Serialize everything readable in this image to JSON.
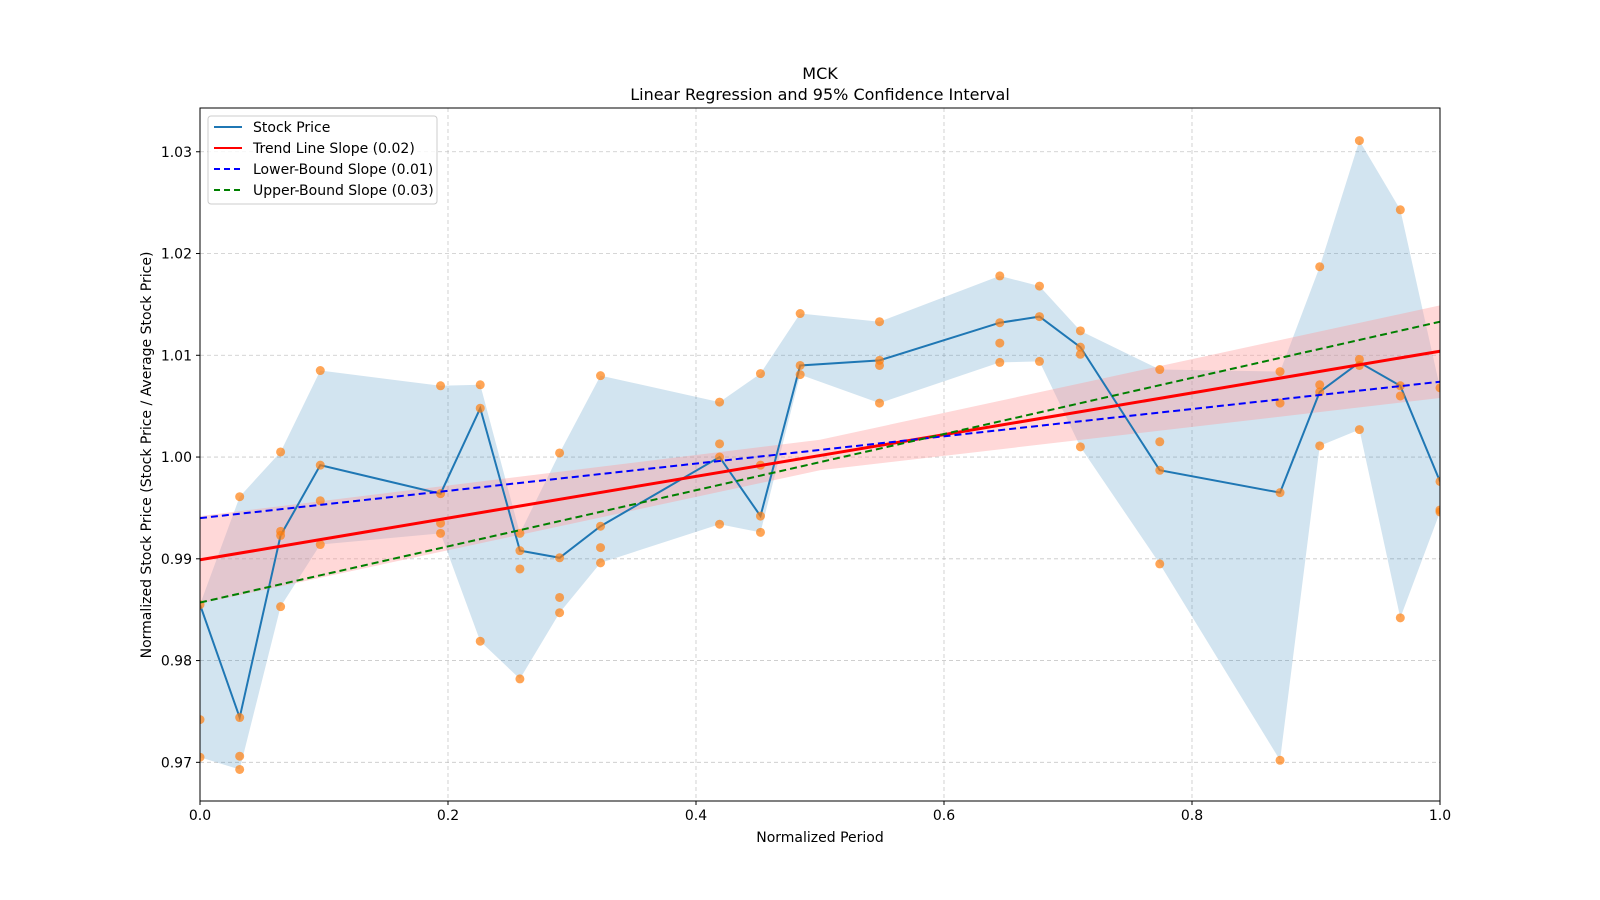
{
  "chart_data": {
    "type": "line",
    "title": "MCK",
    "subtitle": "Linear Regression and 95% Confidence Interval",
    "xlabel": "Normalized Period",
    "ylabel": "Normalized Stock Price (Stock Price / Average Stock Price)",
    "xlim": [
      0.0,
      1.0
    ],
    "ylim": [
      0.9662,
      1.0343
    ],
    "xticks": [
      0.0,
      0.2,
      0.4,
      0.6,
      0.8,
      1.0
    ],
    "xtick_labels": [
      "0.0",
      "0.2",
      "0.4",
      "0.6",
      "0.8",
      "1.0"
    ],
    "yticks": [
      0.97,
      0.98,
      0.99,
      1.0,
      1.01,
      1.02,
      1.03
    ],
    "ytick_labels": [
      "0.97",
      "0.98",
      "0.99",
      "1.00",
      "1.01",
      "1.02",
      "1.03"
    ],
    "grid": true,
    "legend_position": "top-left",
    "legend": [
      {
        "label": "Stock Price",
        "color": "#1f77b4",
        "style": "solid"
      },
      {
        "label": "Trend Line Slope (0.02)",
        "color": "#ff0000",
        "style": "solid"
      },
      {
        "label": "Lower-Bound Slope (0.01)",
        "color": "#0000ff",
        "style": "dashed"
      },
      {
        "label": "Upper-Bound Slope (0.03)",
        "color": "#008000",
        "style": "dashed"
      }
    ],
    "colors": {
      "stock": "#1f77b4",
      "band": "#1f77b4",
      "scatter": "#ff7f0e",
      "trend": "#ff0000",
      "trend_ci": "#ff9999",
      "lower": "#0000ff",
      "upper": "#008000"
    },
    "x": [
      0.0,
      0.032,
      0.065,
      0.097,
      0.194,
      0.226,
      0.258,
      0.29,
      0.323,
      0.419,
      0.452,
      0.484,
      0.548,
      0.645,
      0.677,
      0.71,
      0.774,
      0.871,
      0.903,
      0.935,
      0.968,
      1.0
    ],
    "series": [
      {
        "name": "Stock Price",
        "values": [
          0.9855,
          0.9744,
          0.9923,
          0.9992,
          0.9964,
          1.0048,
          0.9908,
          0.9901,
          0.9932,
          1.0,
          0.9942,
          1.009,
          1.0095,
          1.0132,
          1.0138,
          1.0108,
          0.9987,
          0.9965,
          1.0064,
          1.0093,
          1.007,
          0.9976
        ]
      }
    ],
    "band": {
      "upper": [
        0.9855,
        0.9961,
        1.0005,
        1.0085,
        1.007,
        1.0071,
        0.9925,
        1.0004,
        1.008,
        1.0054,
        1.0082,
        1.0141,
        1.0133,
        1.0178,
        1.0168,
        1.0124,
        1.0086,
        1.0084,
        1.0187,
        1.0311,
        1.0243,
        1.0068
      ],
      "lower": [
        0.9705,
        0.9693,
        0.9853,
        0.9914,
        0.9925,
        0.9819,
        0.9782,
        0.9847,
        0.9896,
        0.9934,
        0.9926,
        1.0081,
        1.0053,
        1.0093,
        1.0094,
        1.001,
        0.9895,
        0.9702,
        1.0011,
        1.0027,
        0.9842,
        0.9946
      ]
    },
    "scatter": [
      [
        0.0,
        0.9855
      ],
      [
        0.0,
        0.9742
      ],
      [
        0.0,
        0.9705
      ],
      [
        0.032,
        0.9961
      ],
      [
        0.032,
        0.9744
      ],
      [
        0.032,
        0.9706
      ],
      [
        0.032,
        0.9693
      ],
      [
        0.065,
        1.0005
      ],
      [
        0.065,
        0.9927
      ],
      [
        0.065,
        0.9923
      ],
      [
        0.065,
        0.9853
      ],
      [
        0.097,
        1.0085
      ],
      [
        0.097,
        0.9992
      ],
      [
        0.097,
        0.9957
      ],
      [
        0.097,
        0.9914
      ],
      [
        0.194,
        1.007
      ],
      [
        0.194,
        0.9964
      ],
      [
        0.194,
        0.9935
      ],
      [
        0.194,
        0.9925
      ],
      [
        0.226,
        1.0071
      ],
      [
        0.226,
        1.0048
      ],
      [
        0.226,
        0.9819
      ],
      [
        0.258,
        0.9925
      ],
      [
        0.258,
        0.9908
      ],
      [
        0.258,
        0.989
      ],
      [
        0.258,
        0.9782
      ],
      [
        0.29,
        1.0004
      ],
      [
        0.29,
        0.9901
      ],
      [
        0.29,
        0.9862
      ],
      [
        0.29,
        0.9847
      ],
      [
        0.323,
        1.008
      ],
      [
        0.323,
        0.9932
      ],
      [
        0.323,
        0.9911
      ],
      [
        0.323,
        0.9896
      ],
      [
        0.419,
        1.0054
      ],
      [
        0.419,
        1.0013
      ],
      [
        0.419,
        1.0
      ],
      [
        0.419,
        0.9934
      ],
      [
        0.452,
        1.0082
      ],
      [
        0.452,
        0.9992
      ],
      [
        0.452,
        0.9942
      ],
      [
        0.452,
        0.9926
      ],
      [
        0.484,
        1.0141
      ],
      [
        0.484,
        1.009
      ],
      [
        0.484,
        1.0081
      ],
      [
        0.548,
        1.0133
      ],
      [
        0.548,
        1.0095
      ],
      [
        0.548,
        1.009
      ],
      [
        0.548,
        1.0053
      ],
      [
        0.645,
        1.0178
      ],
      [
        0.645,
        1.0132
      ],
      [
        0.645,
        1.0112
      ],
      [
        0.645,
        1.0093
      ],
      [
        0.677,
        1.0168
      ],
      [
        0.677,
        1.0138
      ],
      [
        0.677,
        1.0094
      ],
      [
        0.71,
        1.0124
      ],
      [
        0.71,
        1.0108
      ],
      [
        0.71,
        1.0101
      ],
      [
        0.71,
        1.001
      ],
      [
        0.774,
        1.0086
      ],
      [
        0.774,
        1.0015
      ],
      [
        0.774,
        0.9987
      ],
      [
        0.774,
        0.9895
      ],
      [
        0.871,
        1.0084
      ],
      [
        0.871,
        1.0053
      ],
      [
        0.871,
        0.9965
      ],
      [
        0.871,
        0.9702
      ],
      [
        0.903,
        1.0187
      ],
      [
        0.903,
        1.0071
      ],
      [
        0.903,
        1.0064
      ],
      [
        0.903,
        1.0011
      ],
      [
        0.935,
        1.0311
      ],
      [
        0.935,
        1.0096
      ],
      [
        0.935,
        1.009
      ],
      [
        0.935,
        1.0027
      ],
      [
        0.968,
        1.0243
      ],
      [
        0.968,
        1.007
      ],
      [
        0.968,
        1.006
      ],
      [
        0.968,
        0.9842
      ],
      [
        1.0,
        1.0068
      ],
      [
        1.0,
        0.9976
      ],
      [
        1.0,
        0.9948
      ],
      [
        1.0,
        0.9946
      ]
    ],
    "trend_line": {
      "x": [
        0.0,
        1.0
      ],
      "y": [
        0.9899,
        1.0104
      ],
      "slope": 0.02
    },
    "trend_ci": {
      "x": [
        0.0,
        0.5,
        1.0
      ],
      "upper": [
        0.9942,
        1.0017,
        1.0149
      ],
      "lower": [
        0.9856,
        0.9987,
        1.0058
      ]
    },
    "lower_bound_line": {
      "x": [
        0.0,
        1.0
      ],
      "y": [
        0.994,
        1.0074
      ],
      "slope": 0.01
    },
    "upper_bound_line": {
      "x": [
        0.0,
        1.0
      ],
      "y": [
        0.9857,
        1.0133
      ],
      "slope": 0.03
    }
  }
}
